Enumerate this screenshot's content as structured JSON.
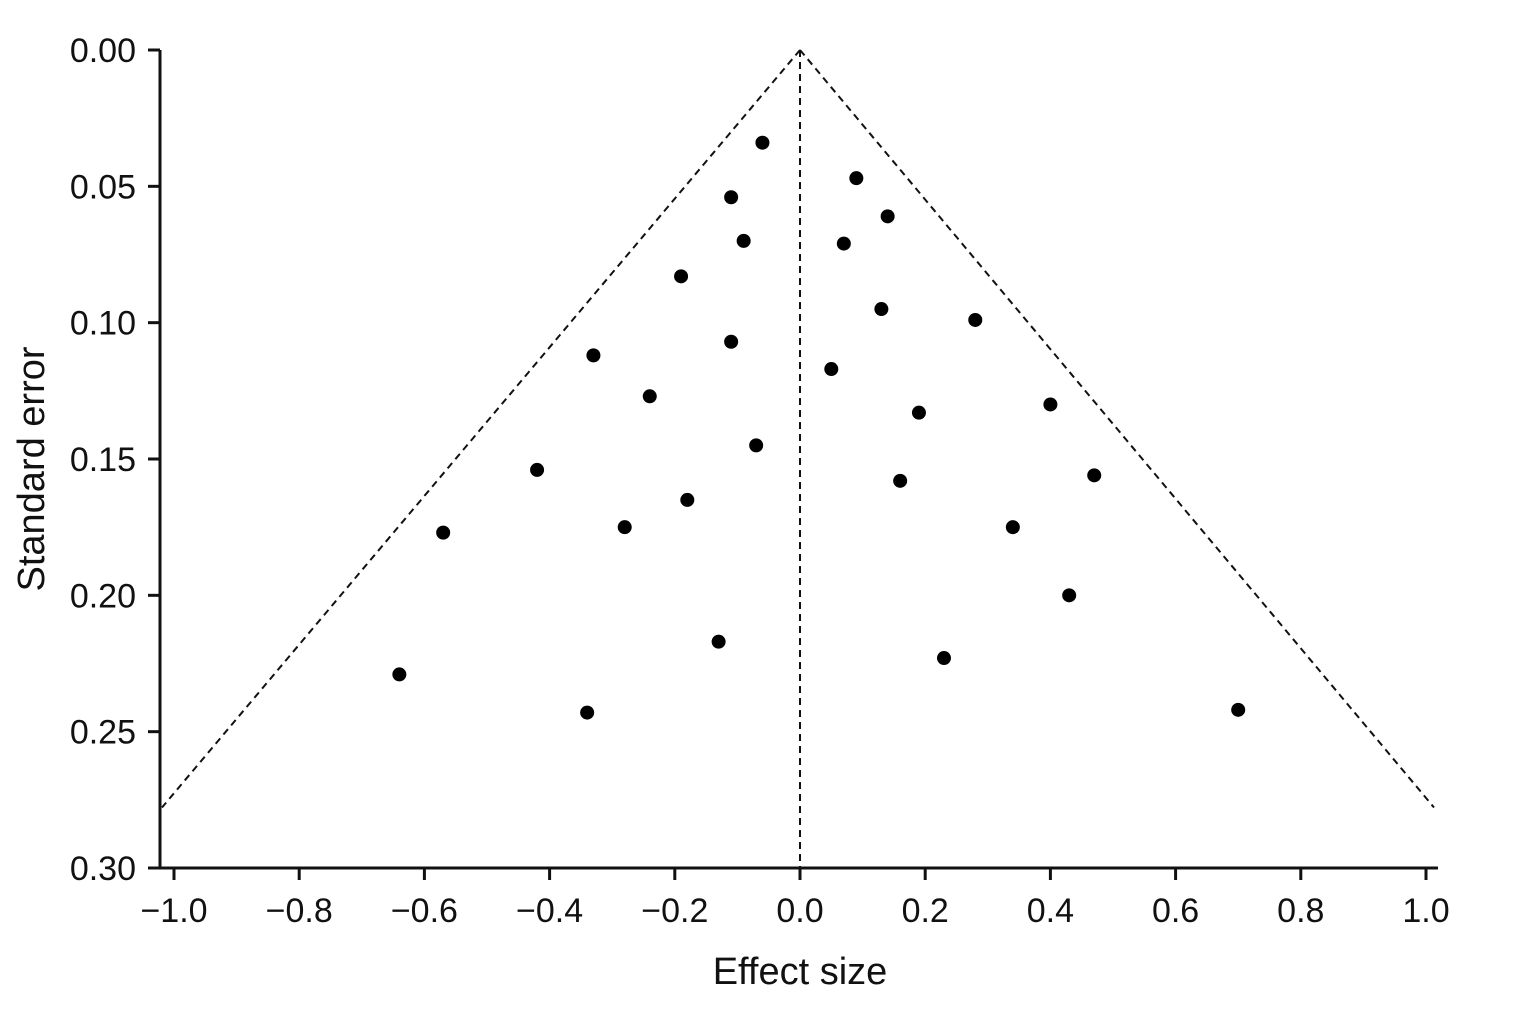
{
  "chart_data": {
    "type": "scatter",
    "title": "",
    "xlabel": "Effect size",
    "ylabel": "Standard error",
    "xlim": [
      -1.0,
      1.0
    ],
    "ylim": [
      0.0,
      0.3
    ],
    "y_inverted": true,
    "x_ticks": [
      "−1.0",
      "−0.8",
      "−0.6",
      "−0.4",
      "−0.2",
      "0.0",
      "0.2",
      "0.4",
      "0.6",
      "0.8",
      "1.0"
    ],
    "x_tick_values": [
      -1.0,
      -0.8,
      -0.6,
      -0.4,
      -0.2,
      0.0,
      0.2,
      0.4,
      0.6,
      0.8,
      1.0
    ],
    "y_ticks": [
      "0.00",
      "0.05",
      "0.10",
      "0.15",
      "0.20",
      "0.25",
      "0.30"
    ],
    "y_tick_values": [
      0.0,
      0.05,
      0.1,
      0.15,
      0.2,
      0.25,
      0.3
    ],
    "grid": false,
    "reference_lines": {
      "center_x": 0.0,
      "funnel_apex": [
        0.0,
        0.0
      ],
      "funnel_left_bottom": [
        -1.0,
        0.28
      ],
      "funnel_right_bottom": [
        1.0,
        0.28
      ],
      "style": "dashed"
    },
    "points": [
      {
        "x": -0.06,
        "y": 0.034
      },
      {
        "x": 0.09,
        "y": 0.047
      },
      {
        "x": -0.11,
        "y": 0.054
      },
      {
        "x": 0.14,
        "y": 0.061
      },
      {
        "x": -0.09,
        "y": 0.07
      },
      {
        "x": 0.07,
        "y": 0.071
      },
      {
        "x": -0.19,
        "y": 0.083
      },
      {
        "x": 0.13,
        "y": 0.095
      },
      {
        "x": 0.28,
        "y": 0.099
      },
      {
        "x": -0.11,
        "y": 0.107
      },
      {
        "x": -0.33,
        "y": 0.112
      },
      {
        "x": 0.05,
        "y": 0.117
      },
      {
        "x": -0.24,
        "y": 0.127
      },
      {
        "x": 0.4,
        "y": 0.13
      },
      {
        "x": 0.19,
        "y": 0.133
      },
      {
        "x": -0.07,
        "y": 0.145
      },
      {
        "x": -0.42,
        "y": 0.154
      },
      {
        "x": 0.47,
        "y": 0.156
      },
      {
        "x": 0.16,
        "y": 0.158
      },
      {
        "x": -0.18,
        "y": 0.165
      },
      {
        "x": -0.28,
        "y": 0.175
      },
      {
        "x": 0.34,
        "y": 0.175
      },
      {
        "x": -0.57,
        "y": 0.177
      },
      {
        "x": 0.43,
        "y": 0.2
      },
      {
        "x": -0.13,
        "y": 0.217
      },
      {
        "x": 0.23,
        "y": 0.223
      },
      {
        "x": -0.64,
        "y": 0.229
      },
      {
        "x": -0.34,
        "y": 0.243
      },
      {
        "x": 0.7,
        "y": 0.242
      }
    ],
    "point_color": "#000000"
  }
}
